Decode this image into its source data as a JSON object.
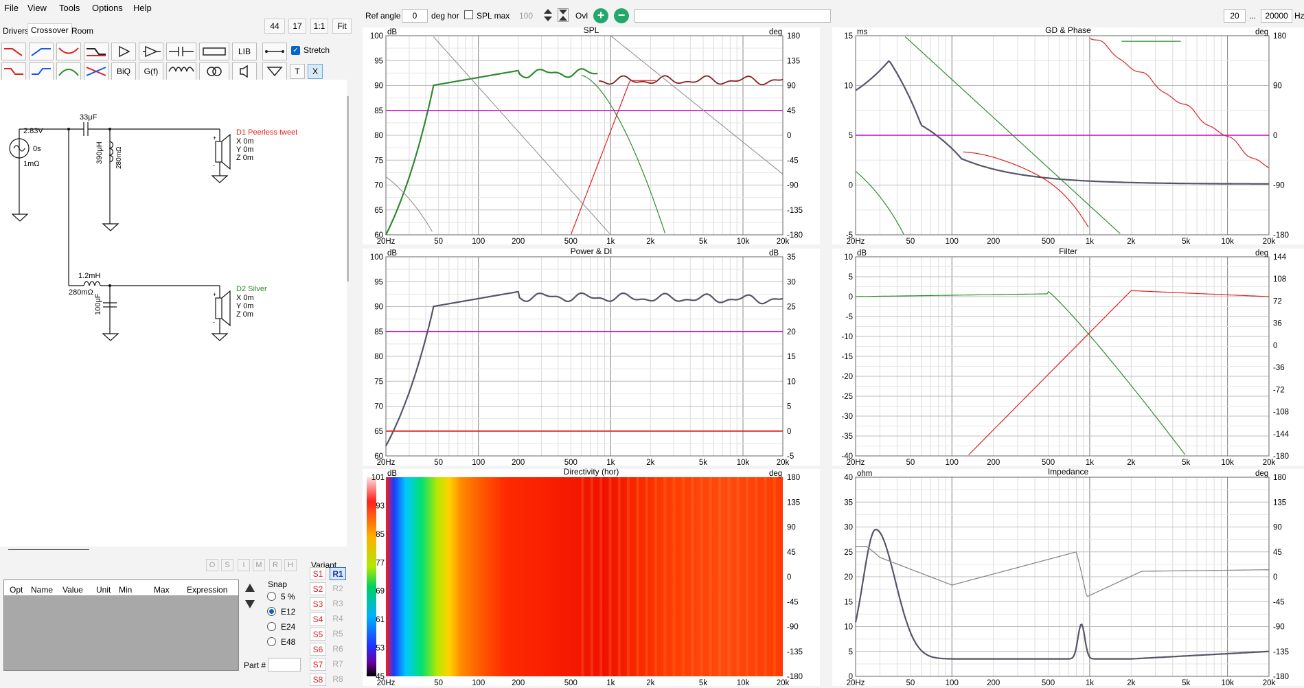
{
  "menu": [
    "File",
    "View",
    "Tools",
    "Options",
    "Help"
  ],
  "tabs": [
    "Drivers",
    "Crossover",
    "Room"
  ],
  "toolbar": {
    "n1": "44",
    "n2": "17",
    "n3": "1:1",
    "n4": "Fit",
    "lib": "LIB",
    "biq": "BiQ",
    "gf": "G(f)",
    "t": "T",
    "x": "X",
    "stretch": "Stretch"
  },
  "top": {
    "ref_angle_label": "Ref angle",
    "ref_angle_value": "0",
    "deg_hor": "deg hor",
    "splmax": "SPL max",
    "splmax_value": "100",
    "ovl": "Ovl",
    "freq_lo": "20",
    "dots": "...",
    "freq_hi": "20000",
    "hz": "Hz"
  },
  "schematic": {
    "v": "2.83V",
    "s": "0s",
    "r": "1mΩ",
    "c1": "33μF",
    "l1": "390μH",
    "r1": "280mΩ",
    "d1": "D1 Peerless tweet",
    "d1x": "X 0m",
    "d1y": "Y 0m",
    "d1z": "Z 0m",
    "l2": "1.2mH",
    "r2": "280mΩ",
    "c2": "100μF",
    "d2": "D2 Silver",
    "d2x": "X 0m",
    "d2y": "Y 0m",
    "d2z": "Z 0m"
  },
  "opt": {
    "ostate": [
      "O",
      "S",
      "I",
      "M",
      "R",
      "H"
    ],
    "headers": [
      "Opt",
      "Name",
      "Value",
      "Unit",
      "Min",
      "Max",
      "Expression"
    ],
    "snap": "Snap",
    "snap_opts": [
      "5 %",
      "E12",
      "E24",
      "E48"
    ],
    "variant": "Variant",
    "s": [
      "S1",
      "S2",
      "S3",
      "S4",
      "S5",
      "S6",
      "S7",
      "S8"
    ],
    "r": [
      "R1",
      "R2",
      "R3",
      "R4",
      "R5",
      "R6",
      "R7",
      "R8"
    ],
    "part": "Part #"
  },
  "graphs": {
    "spl": {
      "title": "SPL",
      "yl": "dB",
      "yr": "deg"
    },
    "gd": {
      "title": "GD & Phase",
      "yl": "ms",
      "yr": "deg"
    },
    "power": {
      "title": "Power & DI",
      "yl": "dB",
      "yr": "dB"
    },
    "filter": {
      "title": "Filter",
      "yl": "dB",
      "yr": "deg"
    },
    "dir": {
      "title": "Directivity (hor)",
      "yl": "dB",
      "yr": "deg"
    },
    "imp": {
      "title": "Impedance",
      "yl": "ohm",
      "yr": "deg"
    }
  },
  "xticks": [
    "20Hz",
    "50",
    "100",
    "200",
    "500",
    "1k",
    "2k",
    "5k",
    "10k",
    "20k"
  ],
  "colors": {
    "green": "#2e8b2e",
    "darkred": "#8b1a1a",
    "red": "#e02020",
    "magenta": "#cc00cc",
    "grey": "#888888",
    "dark": "#55556a"
  }
}
